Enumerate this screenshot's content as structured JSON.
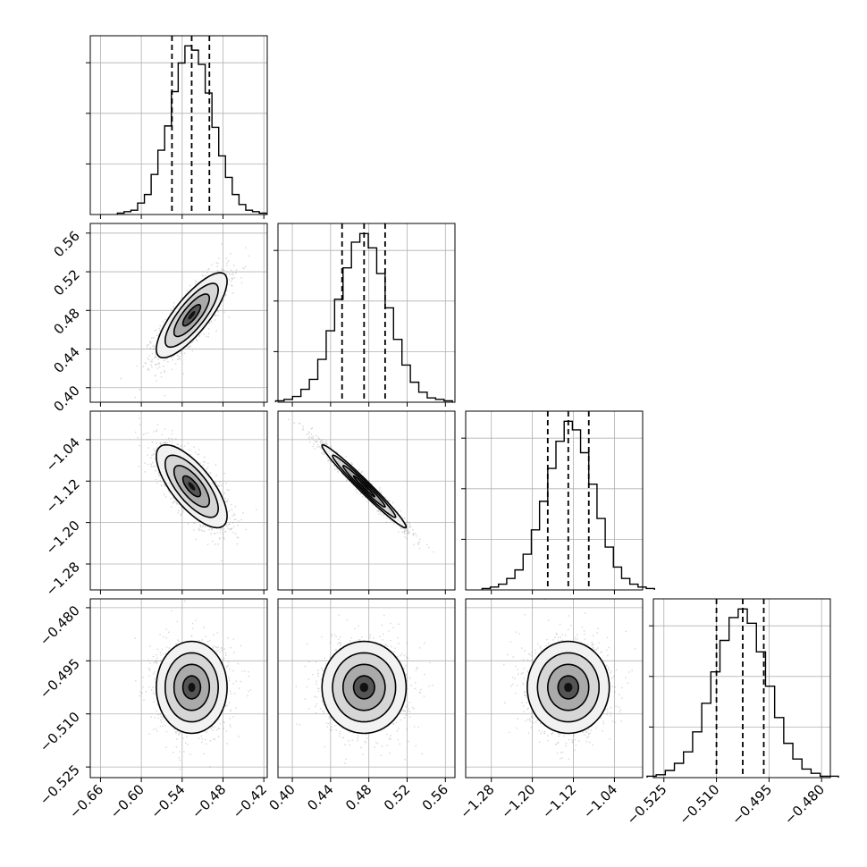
{
  "chart_data": {
    "type": "corner",
    "grid": true,
    "parameters": [
      {
        "range": [
          -0.675,
          -0.415
        ],
        "ticks": [
          -0.66,
          -0.6,
          -0.54,
          -0.48,
          -0.42
        ],
        "tick_labels": [
          "−0.66",
          "−0.60",
          "−0.54",
          "−0.48",
          "−0.42"
        ],
        "quantiles": [
          -0.555,
          -0.526,
          -0.5
        ],
        "mean": -0.526,
        "sigma": 0.026
      },
      {
        "range": [
          0.385,
          0.57
        ],
        "ticks": [
          0.4,
          0.44,
          0.48,
          0.52,
          0.56
        ],
        "tick_labels": [
          "0.40",
          "0.44",
          "0.48",
          "0.52",
          "0.56"
        ],
        "quantiles": [
          0.452,
          0.475,
          0.497
        ],
        "mean": 0.475,
        "sigma": 0.022
      },
      {
        "range": [
          -1.33,
          -0.985
        ],
        "ticks": [
          -1.28,
          -1.2,
          -1.12,
          -1.04
        ],
        "tick_labels": [
          "−1.28",
          "−1.20",
          "−1.12",
          "−1.04"
        ],
        "quantiles": [
          -1.17,
          -1.13,
          -1.09
        ],
        "mean": -1.13,
        "sigma": 0.04
      },
      {
        "range": [
          -0.528,
          -0.4775
        ],
        "ticks": [
          -0.525,
          -0.51,
          -0.495,
          -0.48
        ],
        "tick_labels": [
          "−0.525",
          "−0.510",
          "−0.495",
          "−0.480"
        ],
        "quantiles": [
          -0.51,
          -0.5025,
          -0.4965
        ],
        "mean": -0.5025,
        "sigma": 0.0065
      }
    ],
    "histograms": [
      [
        1,
        2,
        3,
        8,
        14,
        28,
        45,
        62,
        86,
        106,
        118,
        115,
        105,
        85,
        61,
        41,
        26,
        14,
        7,
        3,
        2,
        1
      ],
      [
        1,
        2,
        4,
        9,
        16,
        30,
        50,
        72,
        94,
        112,
        118,
        108,
        90,
        66,
        44,
        26,
        14,
        7,
        3,
        2,
        1
      ],
      [
        1,
        2,
        4,
        8,
        14,
        25,
        42,
        62,
        85,
        104,
        118,
        112,
        96,
        74,
        50,
        30,
        16,
        8,
        4,
        2,
        1
      ],
      [
        1,
        2,
        5,
        10,
        18,
        32,
        52,
        74,
        96,
        112,
        118,
        108,
        88,
        64,
        42,
        24,
        13,
        6,
        3,
        1,
        1
      ]
    ],
    "correlations": [
      [
        1,
        0.8,
        -0.72,
        0.0
      ],
      [
        0.8,
        1,
        -0.98,
        0.0
      ],
      [
        -0.72,
        -0.98,
        1,
        0.0
      ],
      [
        0.0,
        0.0,
        0.0,
        1
      ]
    ],
    "contour_levels_sigma": [
      0.5,
      1.0,
      1.5,
      2.0
    ]
  }
}
